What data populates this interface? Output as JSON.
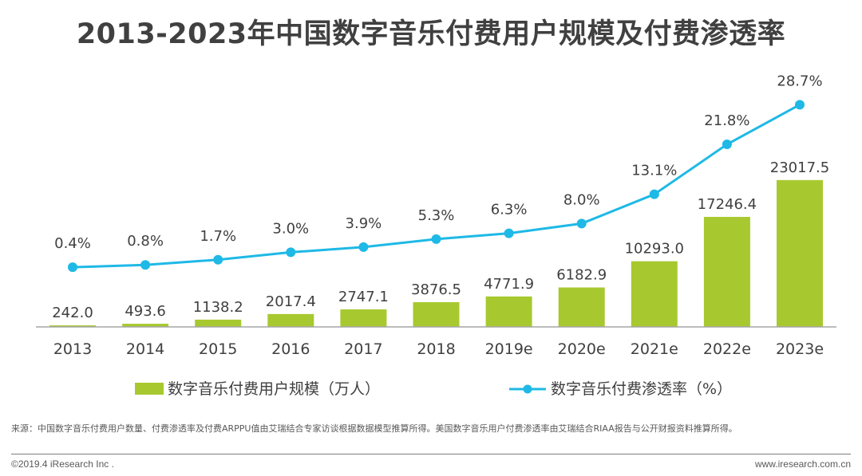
{
  "title": "2013-2023年中国数字音乐付费用户规模及付费渗透率",
  "footer": {
    "source": "来源：中国数字音乐付费用户数量、付费渗透率及付费ARPPU值由艾瑞结合专家访谈根据数据模型推算所得。美国数字音乐用户付费渗透率由艾瑞结合RIAA报告与公开财报资料推算所得。",
    "copyright": "©2019.4 iResearch Inc .",
    "website": "www.iresearch.com.cn"
  },
  "chart_data": {
    "type": "bar+line",
    "categories": [
      "2013",
      "2014",
      "2015",
      "2016",
      "2017",
      "2018",
      "2019e",
      "2020e",
      "2021e",
      "2022e",
      "2023e"
    ],
    "series": [
      {
        "name": "数字音乐付费用户规模（万人）",
        "type": "bar",
        "color": "#a7c92f",
        "values": [
          242.0,
          493.6,
          1138.2,
          2017.4,
          2747.1,
          3876.5,
          4771.9,
          6182.9,
          10293.0,
          17246.4,
          23017.5
        ],
        "labels": [
          "242.0",
          "493.6",
          "1138.2",
          "2017.4",
          "2747.1",
          "3876.5",
          "4771.9",
          "6182.9",
          "10293.0",
          "17246.4",
          "23017.5"
        ]
      },
      {
        "name": "数字音乐付费渗透率（%）",
        "type": "line",
        "color": "#1eb9e6",
        "values": [
          0.4,
          0.8,
          1.7,
          3.0,
          3.9,
          5.3,
          6.3,
          8.0,
          13.1,
          21.8,
          28.7
        ],
        "labels": [
          "0.4%",
          "0.8%",
          "1.7%",
          "3.0%",
          "3.9%",
          "5.3%",
          "6.3%",
          "8.0%",
          "13.1%",
          "21.8%",
          "28.7%"
        ]
      }
    ],
    "legend_position": "bottom",
    "grid": false
  }
}
